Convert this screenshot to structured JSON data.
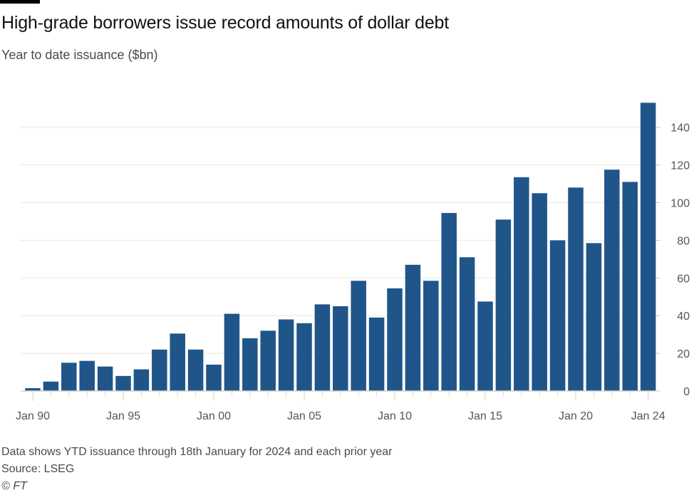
{
  "chart_data": {
    "type": "bar",
    "title": "High-grade borrowers issue record amounts of dollar debt",
    "subtitle": "Year to date issuance ($bn)",
    "xlabel": "",
    "ylabel": "Year to date issuance ($bn)",
    "categories": [
      "1990",
      "1991",
      "1992",
      "1993",
      "1994",
      "1995",
      "1996",
      "1997",
      "1998",
      "1999",
      "2000",
      "2001",
      "2002",
      "2003",
      "2004",
      "2005",
      "2006",
      "2007",
      "2008",
      "2009",
      "2010",
      "2011",
      "2012",
      "2013",
      "2014",
      "2015",
      "2016",
      "2017",
      "2018",
      "2019",
      "2020",
      "2021",
      "2022",
      "2023",
      "2024"
    ],
    "values": [
      1.5,
      5,
      15,
      16,
      13,
      8,
      11.5,
      22,
      30.5,
      22,
      14,
      41,
      28,
      32,
      38,
      36,
      46,
      45,
      58.5,
      39,
      54.5,
      67,
      58.5,
      94.5,
      71,
      47.5,
      91,
      113.5,
      105,
      80,
      108,
      78.5,
      117.5,
      111,
      153
    ],
    "ylim": [
      0,
      155
    ],
    "yticks": [
      0,
      20,
      40,
      60,
      80,
      100,
      120,
      140
    ],
    "xtick_labels": [
      {
        "index": 0,
        "label": "Jan 90"
      },
      {
        "index": 5,
        "label": "Jan 95"
      },
      {
        "index": 10,
        "label": "Jan 00"
      },
      {
        "index": 15,
        "label": "Jan 05"
      },
      {
        "index": 20,
        "label": "Jan 10"
      },
      {
        "index": 25,
        "label": "Jan 15"
      },
      {
        "index": 30,
        "label": "Jan 20"
      },
      {
        "index": 34,
        "label": "Jan 24"
      }
    ],
    "grid": true,
    "yaxis_side": "right",
    "bar_color": "#20558a"
  },
  "footer": {
    "note": "Data shows YTD issuance through 18th January for 2024 and each prior year",
    "source": "Source: LSEG",
    "copyright": "© FT"
  }
}
